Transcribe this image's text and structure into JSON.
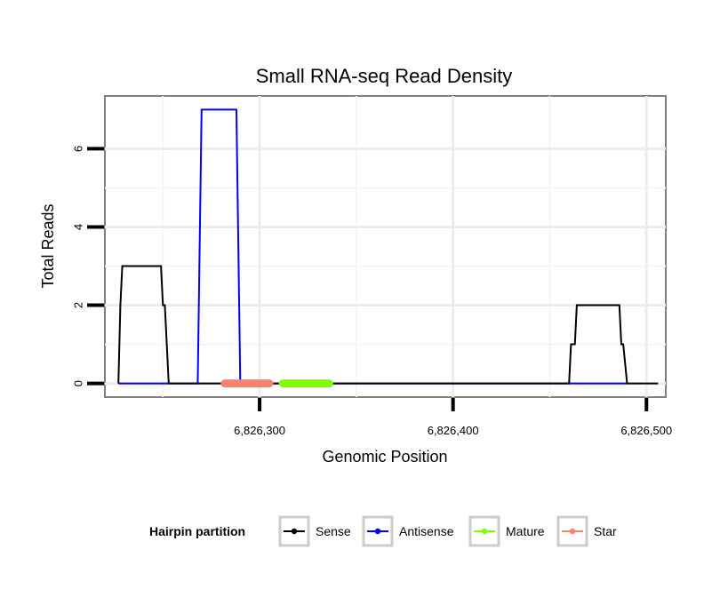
{
  "chart_data": {
    "type": "line",
    "title": "Small RNA-seq Read Density",
    "xlabel": "Genomic Position",
    "ylabel": "Total Reads",
    "xlim": [
      6826220,
      6826510
    ],
    "ylim": [
      -0.35,
      7.35
    ],
    "x_ticks": [
      6826300,
      6826400,
      6826500
    ],
    "x_tick_labels": [
      "6,826,300",
      "6,826,400",
      "6,826,500"
    ],
    "y_ticks": [
      0,
      2,
      4,
      6
    ],
    "y_tick_labels": [
      "0",
      "2",
      "4",
      "6"
    ],
    "grid": true,
    "legend_position": "bottom",
    "legend_title": "Hairpin partition",
    "series": [
      {
        "name": "Sense",
        "color": "#000000",
        "kind": "line",
        "x": [
          6826227,
          6826228,
          6826229,
          6826249,
          6826250,
          6826251,
          6826253,
          6826258,
          6826460,
          6826461,
          6826463,
          6826464,
          6826486,
          6826487,
          6826488,
          6826490,
          6826506
        ],
        "y": [
          0,
          2,
          3,
          3,
          2,
          2,
          0,
          0,
          0,
          1,
          1,
          2,
          2,
          1,
          1,
          0,
          0
        ]
      },
      {
        "name": "Antisense",
        "color": "#0000ff",
        "kind": "line",
        "x": [
          6826227,
          6826268,
          6826270,
          6826288,
          6826290,
          6826460,
          6826490
        ],
        "y": [
          0,
          0,
          7,
          7,
          0,
          0,
          0
        ]
      },
      {
        "name": "Mature",
        "color": "#7fff00",
        "kind": "segment",
        "x": [
          6826312,
          6826336
        ],
        "y": [
          0,
          0
        ]
      },
      {
        "name": "Star",
        "color": "#fa8072",
        "kind": "segment",
        "x": [
          6826282,
          6826305
        ],
        "y": [
          0,
          0
        ]
      }
    ]
  }
}
